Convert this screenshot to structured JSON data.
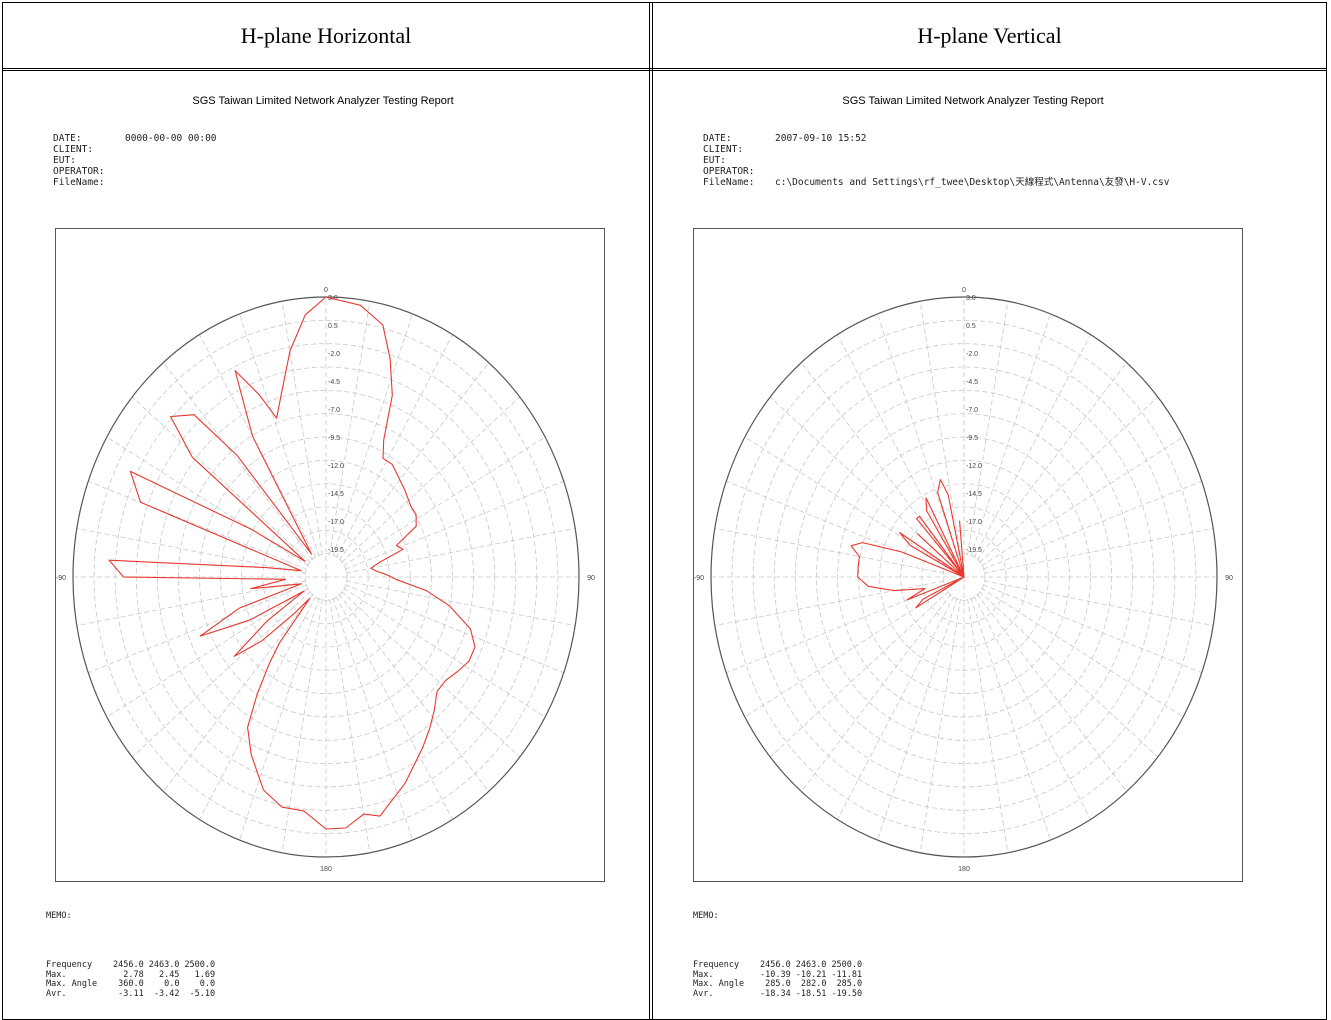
{
  "headers": {
    "left": "H-plane Horizontal",
    "right": "H-plane Vertical"
  },
  "colors": {
    "grid": "#c8c8c8",
    "outline": "#555555",
    "trace": "#e8382e"
  },
  "panels": [
    {
      "title": "SGS Taiwan Limited Network Analyzer Testing Report",
      "meta": {
        "date_label": "DATE:",
        "date": "0000-00-00 00:00",
        "client_label": "CLIENT:",
        "client": "",
        "eut_label": "EUT:",
        "eut": "",
        "operator_label": "OPERATOR:",
        "operator": "",
        "filename_label": "FileName:",
        "filename": ""
      },
      "memo": "MEMO:",
      "stats": {
        "rows": [
          [
            "Frequency",
            "2456.0",
            "2463.0",
            "2500.0"
          ],
          [
            "Max.",
            "2.78",
            "2.45",
            "1.69"
          ],
          [
            "Max. Angle",
            "360.0",
            "0.0",
            "0.0"
          ],
          [
            "Avr.",
            "-3.11",
            "-3.42",
            "-5.10"
          ]
        ]
      }
    },
    {
      "title": "SGS Taiwan Limited Network Analyzer Testing Report",
      "meta": {
        "date_label": "DATE:",
        "date": "2007-09-10 15:52",
        "client_label": "CLIENT:",
        "client": "",
        "eut_label": "EUT:",
        "eut": "",
        "operator_label": "OPERATOR:",
        "operator": "",
        "filename_label": "FileName:",
        "filename": "c:\\Documents and Settings\\rf_twee\\Desktop\\天線程式\\Antenna\\友發\\H-V.csv"
      },
      "memo": "MEMO:",
      "stats": {
        "rows": [
          [
            "Frequency",
            "2456.0",
            "2463.0",
            "2500.0"
          ],
          [
            "Max.",
            "-10.39",
            "-10.21",
            "-11.81"
          ],
          [
            "Max. Angle",
            "285.0",
            "282.0",
            "285.0"
          ],
          [
            "Avr.",
            "-18.34",
            "-18.51",
            "-19.50"
          ]
        ]
      }
    }
  ],
  "chart_data": [
    {
      "type": "polar-line",
      "angle_labels": [
        "0",
        "90",
        "180",
        "-90"
      ],
      "radial_ticks": [
        "3.0",
        "0.5",
        "-2.0",
        "-4.5",
        "-7.0",
        "-9.5",
        "-12.0",
        "-14.5",
        "-17.0",
        "-19.5"
      ],
      "r_range": [
        -22,
        3
      ],
      "grid": true,
      "series": [
        {
          "points": [
            [
              0,
              3.0
            ],
            [
              8,
              2.5
            ],
            [
              14,
              1.2
            ],
            [
              18,
              -1.5
            ],
            [
              22,
              -4.5
            ],
            [
              25,
              -8.5
            ],
            [
              28,
              -10.0
            ],
            [
              33,
              -10.0
            ],
            [
              38,
              -10.5
            ],
            [
              45,
              -11.0
            ],
            [
              53,
              -11.5
            ],
            [
              58,
              -11.5
            ],
            [
              63,
              -12.0
            ],
            [
              68,
              -14.5
            ],
            [
              72,
              -14.0
            ],
            [
              76,
              -16.5
            ],
            [
              80,
              -17.5
            ],
            [
              84,
              -17.0
            ],
            [
              88,
              -16.0
            ],
            [
              92,
              -15.0
            ],
            [
              97,
              -12.0
            ],
            [
              102,
              -9.5
            ],
            [
              108,
              -7.0
            ],
            [
              113,
              -6.0
            ],
            [
              118,
              -6.0
            ],
            [
              123,
              -6.5
            ],
            [
              128,
              -7.0
            ],
            [
              133,
              -7.0
            ],
            [
              138,
              -6.0
            ],
            [
              143,
              -5.0
            ],
            [
              148,
              -4.0
            ],
            [
              153,
              -3.0
            ],
            [
              157,
              -2.0
            ],
            [
              162,
              -1.0
            ],
            [
              166,
              0.0
            ],
            [
              170,
              -0.5
            ],
            [
              175,
              0.5
            ],
            [
              180,
              0.5
            ],
            [
              186,
              -1.0
            ],
            [
              192,
              -1.0
            ],
            [
              198,
              -2.0
            ],
            [
              205,
              -4.5
            ],
            [
              210,
              -6.5
            ],
            [
              213,
              -9.5
            ],
            [
              216,
              -12.5
            ],
            [
              218,
              -14.5
            ],
            [
              220,
              -19.5
            ],
            [
              224,
              -17.5
            ],
            [
              228,
              -13.5
            ],
            [
              232,
              -10.5
            ],
            [
              236,
              -15.0
            ],
            [
              240,
              -19.5
            ],
            [
              243,
              -13.5
            ],
            [
              247,
              -8.5
            ],
            [
              252,
              -13.0
            ],
            [
              256,
              -19.5
            ],
            [
              262,
              -14.5
            ],
            [
              267,
              -18.0
            ],
            [
              270,
              -2.0
            ],
            [
              274,
              -0.5
            ],
            [
              278,
              -16.0
            ],
            [
              283,
              -19.5
            ],
            [
              290,
              -2.5
            ],
            [
              296,
              -0.5
            ],
            [
              300,
              -13.5
            ],
            [
              304,
              -19.5
            ],
            [
              309,
              -5.0
            ],
            [
              313,
              -1.0
            ],
            [
              318,
              -2.5
            ],
            [
              321,
              -8.0
            ],
            [
              325,
              -19.5
            ],
            [
              330,
              -7.5
            ],
            [
              334,
              -1.5
            ],
            [
              338,
              -4.5
            ],
            [
              341,
              -7.0
            ],
            [
              345,
              -5.0
            ],
            [
              350,
              -1.5
            ],
            [
              355,
              1.5
            ],
            [
              360,
              3.0
            ]
          ]
        }
      ]
    },
    {
      "type": "polar-line",
      "angle_labels": [
        "0",
        "90",
        "180",
        "-90"
      ],
      "radial_ticks": [
        "3.0",
        "0.5",
        "-2.0",
        "-4.5",
        "-7.0",
        "-9.5",
        "-12.0",
        "-14.5",
        "-17.0",
        "-19.5"
      ],
      "r_range": [
        -22,
        3
      ],
      "grid": true,
      "series": [
        {
          "points": [
            [
              0,
              -22
            ],
            [
              90,
              -22
            ],
            [
              180,
              -22
            ],
            [
              230,
              -22
            ],
            [
              240,
              -16.5
            ],
            [
              244,
              -17.5
            ],
            [
              248,
              -22
            ],
            [
              250,
              -16.0
            ],
            [
              255,
              -18.0
            ],
            [
              260,
              -15.0
            ],
            [
              265,
              -12.5
            ],
            [
              270,
              -11.5
            ],
            [
              275,
              -11.5
            ],
            [
              280,
              -11.5
            ],
            [
              284,
              -10.5
            ],
            [
              287,
              -11.5
            ],
            [
              290,
              -15.5
            ],
            [
              294,
              -22
            ],
            [
              298,
              -16.0
            ],
            [
              302,
              -14.5
            ],
            [
              305,
              -22
            ],
            [
              310,
              -16.0
            ],
            [
              314,
              -22
            ],
            [
              318,
              -15.0
            ],
            [
              321,
              -15.0
            ],
            [
              324,
              -22
            ],
            [
              328,
              -15.0
            ],
            [
              332,
              -14.0
            ],
            [
              336,
              -22
            ],
            [
              341,
              -14.0
            ],
            [
              345,
              -13.0
            ],
            [
              348,
              -14.5
            ],
            [
              352,
              -22
            ],
            [
              355,
              -17.0
            ],
            [
              358,
              -22
            ],
            [
              360,
              -22
            ]
          ]
        }
      ]
    }
  ]
}
